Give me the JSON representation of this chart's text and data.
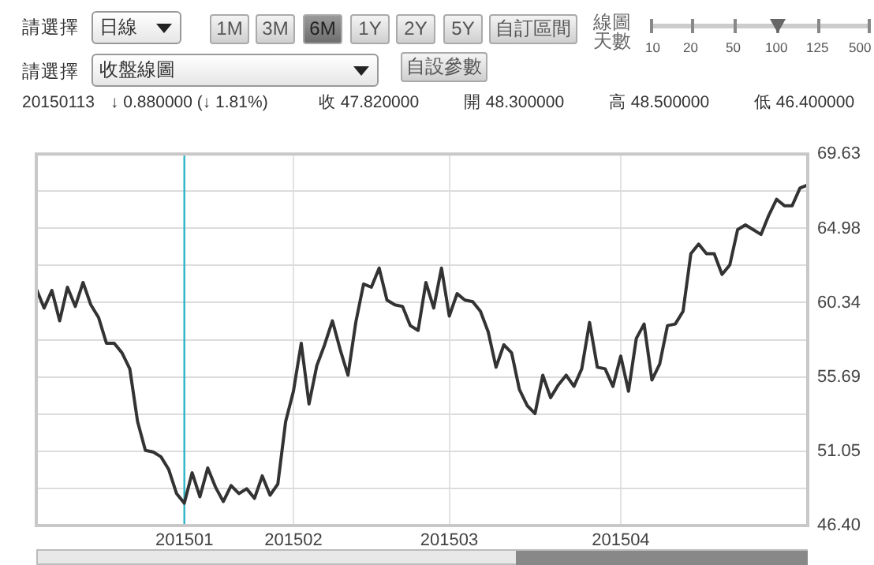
{
  "chart_data": {
    "type": "line",
    "categories": [
      null,
      null,
      null,
      null,
      null,
      null,
      null,
      null,
      null,
      null,
      null,
      null,
      null,
      null,
      null,
      null,
      null,
      null,
      null,
      "201501",
      null,
      null,
      null,
      null,
      null,
      null,
      null,
      null,
      null,
      null,
      null,
      null,
      null,
      "201502",
      null,
      null,
      null,
      null,
      null,
      null,
      null,
      null,
      null,
      null,
      null,
      null,
      null,
      null,
      null,
      null,
      null,
      null,
      null,
      "201503",
      null,
      null,
      null,
      null,
      null,
      null,
      null,
      null,
      null,
      null,
      null,
      null,
      null,
      null,
      null,
      null,
      null,
      null,
      null,
      null,
      null,
      "201504",
      null,
      null,
      null,
      null,
      null,
      null,
      null,
      null,
      null,
      null,
      null,
      null,
      null,
      null,
      null,
      null,
      null,
      null,
      null,
      null,
      null,
      null,
      null,
      null
    ],
    "series": [
      {
        "color": "#333333",
        "values": [
          61.2,
          60.0,
          61.1,
          59.2,
          61.3,
          60.1,
          61.6,
          60.2,
          59.4,
          57.8,
          57.8,
          57.2,
          56.2,
          52.9,
          51.1,
          51.0,
          50.7,
          49.9,
          48.4,
          47.8,
          49.7,
          48.2,
          50.0,
          48.8,
          47.9,
          48.9,
          48.4,
          48.7,
          48.1,
          49.5,
          48.3,
          49.0,
          52.9,
          54.8,
          57.8,
          54.0,
          56.4,
          57.7,
          59.2,
          57.4,
          55.8,
          59.1,
          61.5,
          61.3,
          62.5,
          60.5,
          60.2,
          60.1,
          58.9,
          58.6,
          61.6,
          60.0,
          62.5,
          59.5,
          60.9,
          60.5,
          60.4,
          59.8,
          58.5,
          56.3,
          57.7,
          57.2,
          54.9,
          53.9,
          53.4,
          55.8,
          54.4,
          55.2,
          55.8,
          55.1,
          56.2,
          59.1,
          56.3,
          56.2,
          55.1,
          57.0,
          54.8,
          58.1,
          59.0,
          55.5,
          56.5,
          58.9,
          59.0,
          59.8,
          63.4,
          64.0,
          63.4,
          63.4,
          62.1,
          62.7,
          64.9,
          65.2,
          64.9,
          64.6,
          65.8,
          66.8,
          66.4,
          66.4,
          67.5,
          67.7
        ]
      }
    ],
    "ylim": [
      46.4,
      69.63
    ],
    "yticks": [
      {
        "value": 46.4,
        "label": "46.40"
      },
      {
        "value": 48.72,
        "label": null
      },
      51.05,
      {
        "value": 53.37,
        "label": null
      },
      55.69,
      {
        "value": 58.01,
        "label": null
      },
      60.34,
      {
        "value": 62.66,
        "label": null
      },
      64.98,
      {
        "value": 67.31,
        "label": null
      },
      69.63
    ],
    "grid": true,
    "marker": "none",
    "line_style": "solid",
    "ref_lines": [
      {
        "axis": "x",
        "value": "201501",
        "color": "#2bb5c8"
      }
    ],
    "annotations": [
      "請選擇",
      "日線",
      "1M",
      "3M",
      "6M",
      "1Y",
      "2Y",
      "5Y",
      "自訂區間",
      "線圖天數",
      "10",
      "20",
      "50",
      "100",
      "125",
      "500",
      "請選擇",
      "收盤線圖",
      "自設參數",
      "20150113",
      "↓ 0.880000 (↓ 1.81%)",
      "收 47.820000",
      "開 48.300000",
      "高 48.500000",
      "低 46.400000"
    ]
  }
}
